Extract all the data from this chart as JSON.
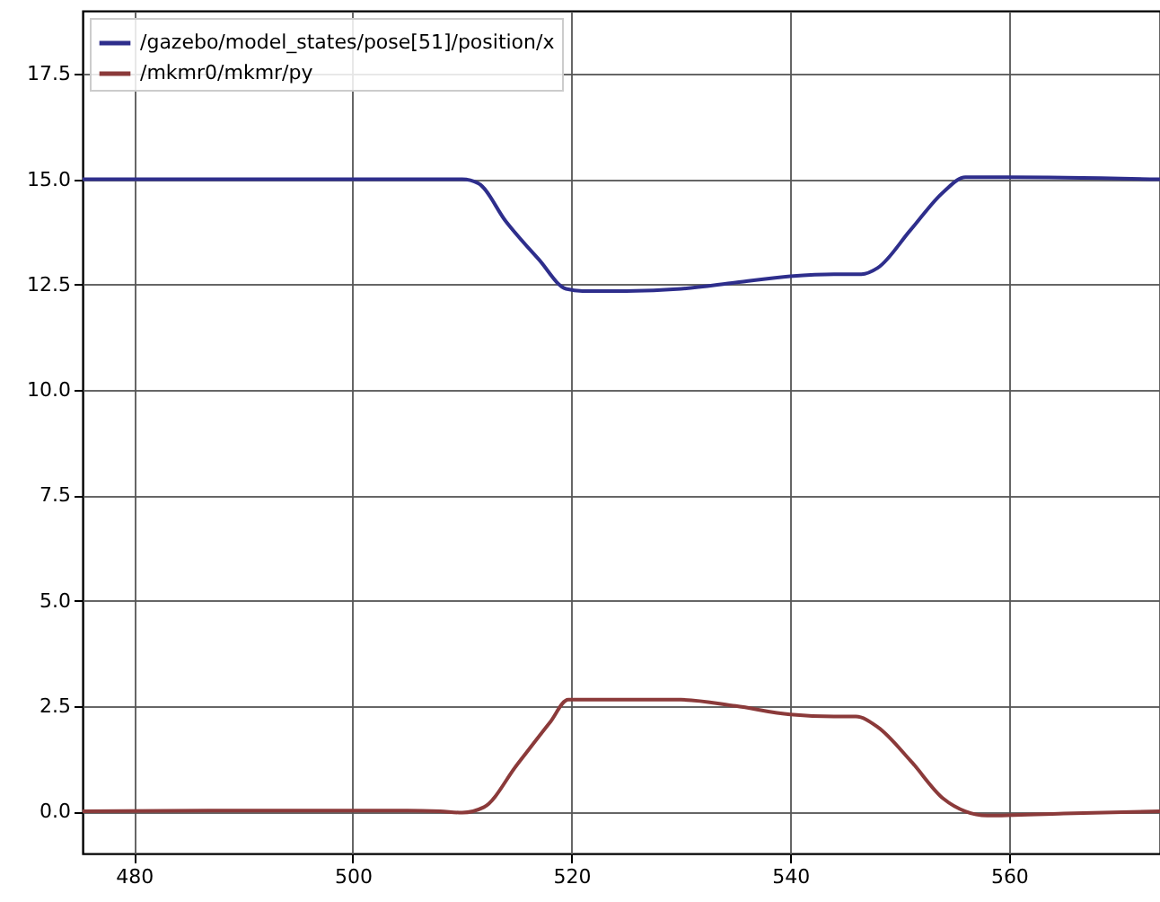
{
  "chart_data": {
    "type": "line",
    "series": [
      {
        "name": "/gazebo/model_states/pose[51]/position/x",
        "color": "#2e2e8c",
        "x": [
          475.3,
          490,
          505,
          510,
          511.5,
          514,
          517,
          519.5,
          521,
          525,
          530,
          535,
          540,
          544,
          546.5,
          548,
          551,
          554,
          556,
          560,
          573.8
        ],
        "values": [
          15.0,
          15.0,
          15.0,
          15.0,
          14.9,
          14.0,
          13.1,
          12.4,
          12.35,
          12.35,
          12.4,
          12.55,
          12.7,
          12.75,
          12.75,
          12.9,
          13.8,
          14.7,
          15.05,
          15.05,
          15.0
        ]
      },
      {
        "name": "/mkmr0/mkmr/py",
        "color": "#8b3a3a",
        "x": [
          475.3,
          490,
          505,
          508,
          510,
          512,
          515,
          518,
          519.7,
          525,
          530,
          535,
          540,
          544,
          546,
          548,
          551,
          554,
          556,
          558,
          565,
          573.8
        ],
        "values": [
          0.0,
          0.02,
          0.02,
          0.0,
          -0.03,
          0.1,
          1.1,
          2.1,
          2.65,
          2.65,
          2.65,
          2.5,
          2.3,
          2.25,
          2.25,
          2.0,
          1.2,
          0.3,
          0.0,
          -0.1,
          -0.05,
          0.0
        ]
      }
    ],
    "xlim": [
      475.3,
      573.8
    ],
    "xticks": [
      480,
      500,
      520,
      540,
      560
    ],
    "ylim": [
      -1.0,
      19.0
    ],
    "yticks": [
      {
        "value": 0,
        "label": "0.0"
      },
      2.5,
      {
        "value": 5,
        "label": "5.0"
      },
      7.5,
      {
        "value": 10,
        "label": "10.0"
      },
      12.5,
      {
        "value": 15,
        "label": "15.0"
      },
      17.5
    ],
    "grid": true,
    "legend": "top left",
    "line_style": "solid",
    "marker": "none"
  }
}
